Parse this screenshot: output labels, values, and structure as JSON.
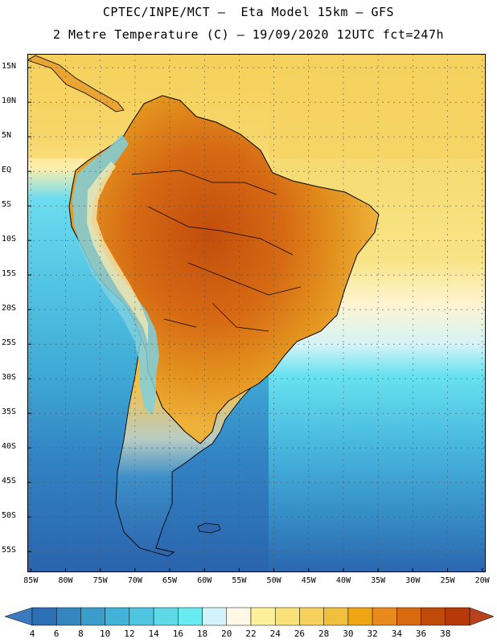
{
  "title": {
    "line1": "CPTEC/INPE/MCT –  Eta Model 15km – GFS",
    "line2": "2 Metre Temperature (C) – 19/09/2020 12UTC fct=247h"
  },
  "map": {
    "region": "South America",
    "lat_ticks": [
      "15N",
      "10N",
      "5N",
      "EQ",
      "5S",
      "10S",
      "15S",
      "20S",
      "25S",
      "30S",
      "35S",
      "40S",
      "45S",
      "50S",
      "55S"
    ],
    "lat_values": [
      15,
      10,
      5,
      0,
      -5,
      -10,
      -15,
      -20,
      -25,
      -30,
      -35,
      -40,
      -45,
      -50,
      -55
    ],
    "lon_ticks": [
      "85W",
      "80W",
      "75W",
      "70W",
      "65W",
      "60W",
      "55W",
      "50W",
      "45W",
      "40W",
      "35W",
      "30W",
      "25W",
      "20W"
    ],
    "lon_values": [
      -85,
      -80,
      -75,
      -70,
      -65,
      -60,
      -55,
      -50,
      -45,
      -40,
      -35,
      -30,
      -25,
      -20
    ],
    "lat_range": [
      -58,
      17
    ],
    "lon_range": [
      -85.5,
      -19.5
    ]
  },
  "colorbar": {
    "labels": [
      "4",
      "6",
      "8",
      "10",
      "12",
      "14",
      "16",
      "18",
      "20",
      "22",
      "24",
      "26",
      "28",
      "30",
      "32",
      "34",
      "36",
      "38"
    ],
    "colors": [
      "#2c6fb5",
      "#3585c1",
      "#3b9dcc",
      "#43b2d8",
      "#4fc6df",
      "#5fd9e8",
      "#68ecf0",
      "#d3f3fb",
      "#fff8e6",
      "#fdf19a",
      "#f9e27a",
      "#f6d15c",
      "#f0bf3b",
      "#eea614",
      "#e88a1e",
      "#d86a0f",
      "#c04a07",
      "#b63907"
    ],
    "low_color": "#3a7bbf",
    "high_color": "#b7421c"
  }
}
